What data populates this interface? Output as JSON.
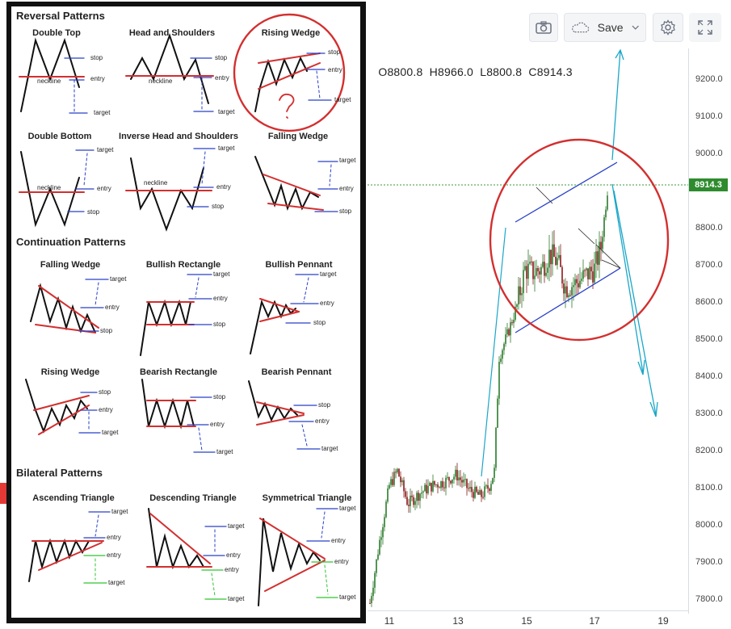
{
  "toolbar": {
    "camera_icon": "camera-icon",
    "save_icon": "cloud-icon",
    "save_label": "Save",
    "dropdown_icon": "chevron-down-icon",
    "settings_icon": "gear-icon",
    "fullscreen_icon": "fullscreen-icon"
  },
  "ohlc": {
    "o": "O8800.8",
    "h": "H8966.0",
    "l": "L8800.8",
    "c": "C8914.3"
  },
  "price_axis": {
    "labels": [
      "9200.0",
      "9100.0",
      "9000.0",
      "8914.3",
      "8800.0",
      "8700.0",
      "8600.0",
      "8500.0",
      "8400.0",
      "8300.0",
      "8200.0",
      "8100.0",
      "8000.0",
      "7900.0",
      "7800.0"
    ],
    "current_price": "8914.3",
    "current_price_color": "#2e8b2e"
  },
  "time_axis": {
    "labels": [
      "11",
      "13",
      "15",
      "17",
      "19"
    ]
  },
  "chart_data": {
    "type": "candlestick",
    "y_range": [
      7770,
      9300
    ],
    "x_labels": [
      "11",
      "13",
      "15",
      "17",
      "19"
    ],
    "current_price": 8914.3,
    "annotations": [
      "rising wedge channel (blue)",
      "red circle around wedge",
      "cyan arrows"
    ]
  },
  "reference": {
    "sections": {
      "reversal": "Reversal Patterns",
      "continuation": "Continuation Patterns",
      "bilateral": "Bilateral Patterns"
    },
    "patterns": {
      "double_top": "Double Top",
      "head_shoulders": "Head and Shoulders",
      "rising_wedge_rev": "Rising Wedge",
      "double_bottom": "Double Bottom",
      "inverse_hs": "Inverse Head and Shoulders",
      "falling_wedge_rev": "Falling Wedge",
      "falling_wedge_cont": "Falling Wedge",
      "bullish_rect": "Bullish Rectangle",
      "bullish_pennant": "Bullish Pennant",
      "rising_wedge_cont": "Rising Wedge",
      "bearish_rect": "Bearish Rectangle",
      "bearish_pennant": "Bearish Pennant",
      "asc_triangle": "Ascending Triangle",
      "desc_triangle": "Descending Triangle",
      "sym_triangle": "Symmetrical Triangle"
    },
    "words": {
      "stop": "stop",
      "entry": "entry",
      "target": "target",
      "neckline": "neckline"
    },
    "question_mark": "?"
  }
}
